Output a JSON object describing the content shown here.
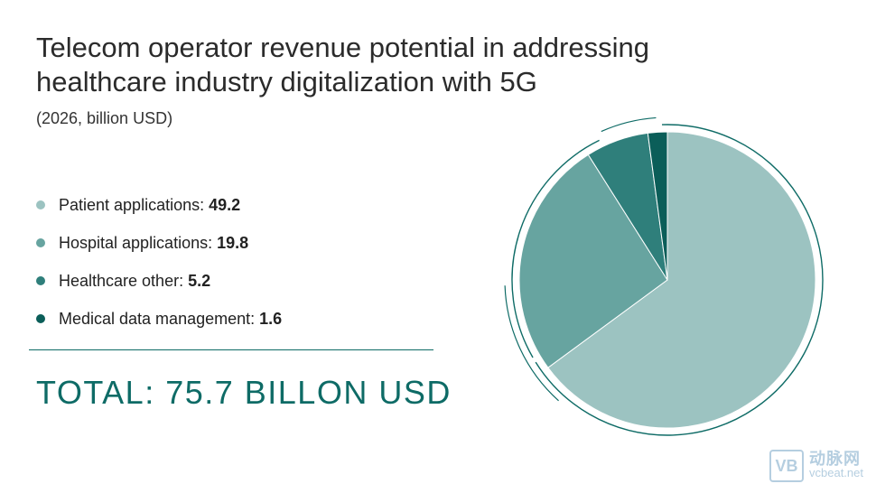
{
  "title": "Telecom operator revenue potential in addressing healthcare industry digitalization with 5G",
  "subtitle": "(2026, billion USD)",
  "legend": [
    {
      "label": "Patient applications:",
      "value": "49.2"
    },
    {
      "label": "Hospital applications:",
      "value": "19.8"
    },
    {
      "label": "Healthcare other:",
      "value": "5.2"
    },
    {
      "label": "Medical data management:",
      "value": "1.6"
    }
  ],
  "total": "TOTAL: 75.7 BILLON USD",
  "watermark": {
    "cn": "动脉网",
    "en": "vcbeat.net",
    "logo": "VB"
  },
  "chart_data": {
    "type": "pie",
    "title": "Telecom operator revenue potential in addressing healthcare industry digitalization with 5G",
    "subtitle": "(2026, billion USD)",
    "categories": [
      "Patient applications",
      "Hospital applications",
      "Healthcare other",
      "Medical data management"
    ],
    "values": [
      49.2,
      19.8,
      5.2,
      1.6
    ],
    "colors": [
      "#9cc3c1",
      "#67a4a0",
      "#2f7f7b",
      "#0b5e59"
    ],
    "legend_position": "left"
  }
}
